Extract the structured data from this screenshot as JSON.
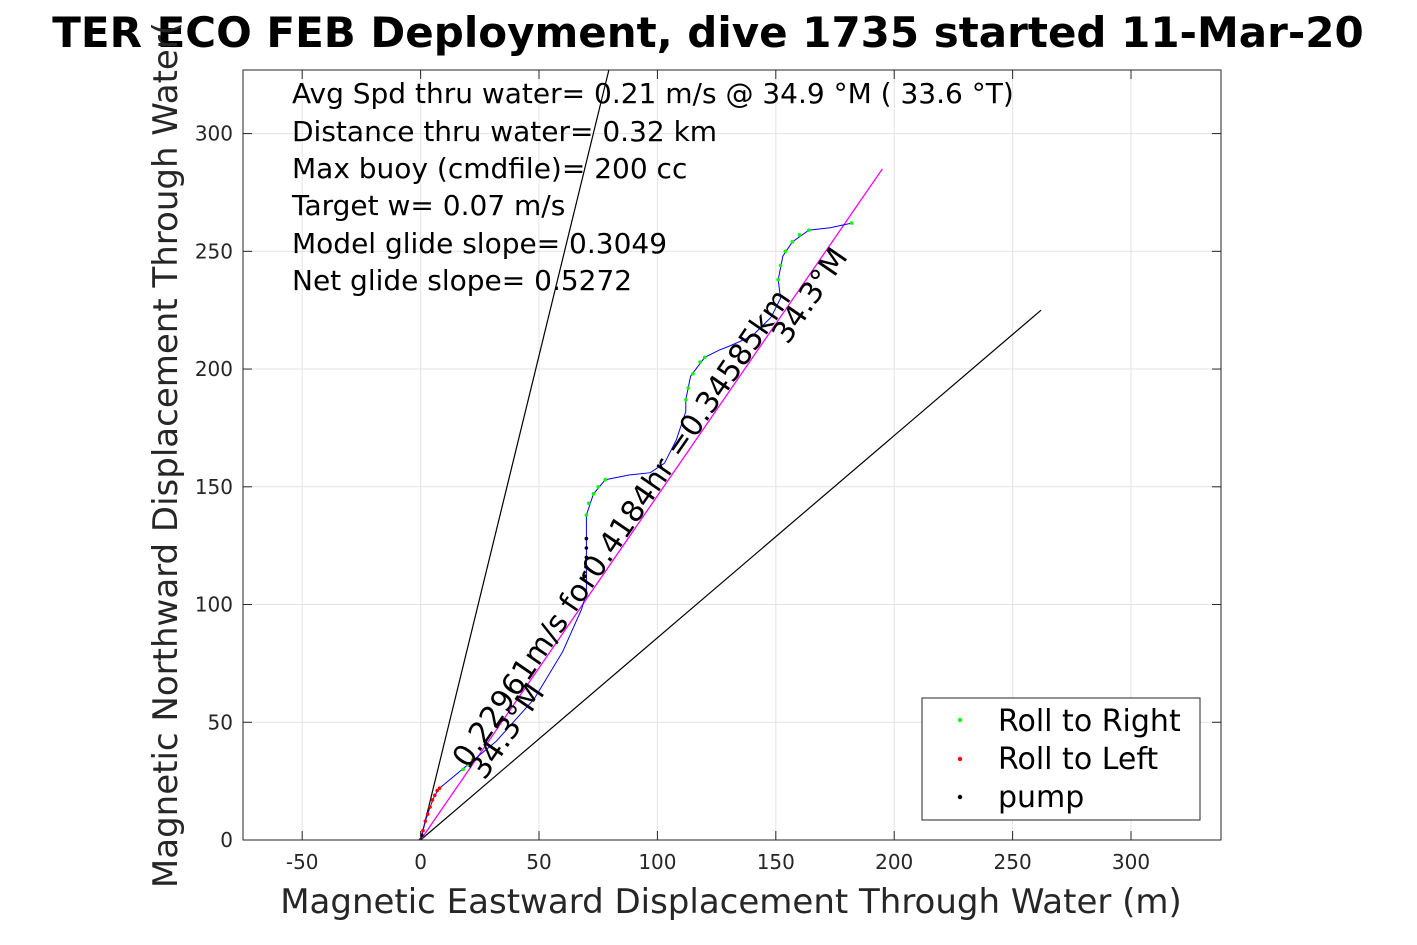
{
  "figure": {
    "title": "TER ECO FEB Deployment, dive 1735 started 11-Mar-20",
    "xlabel": "Magnetic Eastward Displacement Through Water (m)",
    "ylabel": "Magnetic Northward Displacement Through Water("
  },
  "stats": [
    "Avg Spd thru water=  0.21 m/s @  34.9 °M ( 33.6 °T)",
    "Distance thru water=  0.32 km",
    "Max buoy (cmdfile)= 200 cc",
    "Target w= 0.07 m/s",
    "Model glide slope= 0.3049",
    "Net glide slope= 0.5272"
  ],
  "annotations": [
    {
      "text": "0.22961m/s for0.4184hr =0.34585km",
      "x": 20,
      "y": 30
    },
    {
      "text": "34.3°M",
      "x": 27,
      "y": 25
    },
    {
      "text": "34.3°M",
      "x": 155,
      "y": 210
    }
  ],
  "legend": {
    "placement": "bottom-right",
    "items": [
      {
        "label": "Roll to Right",
        "color": "#00ff00"
      },
      {
        "label": "Roll to Left",
        "color": "#ff0000"
      },
      {
        "label": "pump",
        "color": "#000000"
      }
    ]
  },
  "chart_data": {
    "type": "line",
    "xlim": [
      -75,
      338
    ],
    "ylim": [
      0,
      327
    ],
    "xticks": [
      -50,
      0,
      50,
      100,
      150,
      200,
      250,
      300
    ],
    "yticks": [
      0,
      50,
      100,
      150,
      200,
      250,
      300
    ],
    "grid": true,
    "colors": {
      "track": "#0000ff",
      "roll_right": "#00ff00",
      "roll_left": "#ff0000",
      "pump": "#000000",
      "net": "#ff00ff",
      "glide_lines": "#000000"
    },
    "glide_lines": [
      {
        "x": [
          0,
          79.5
        ],
        "y": [
          0,
          327
        ]
      },
      {
        "x": [
          0,
          262
        ],
        "y": [
          0,
          225
        ]
      }
    ],
    "net_line": {
      "x": [
        0,
        195
      ],
      "y": [
        0,
        285
      ]
    },
    "track_segments": [
      [
        [
          0,
          0
        ],
        [
          2,
          8
        ],
        [
          4,
          14
        ],
        [
          6,
          19
        ],
        [
          8,
          22
        ],
        [
          20,
          32
        ],
        [
          32,
          42
        ],
        [
          48,
          60
        ],
        [
          60,
          80
        ],
        [
          68,
          98
        ],
        [
          70,
          105
        ]
      ],
      [
        [
          70,
          105
        ],
        [
          70,
          125
        ],
        [
          70,
          138
        ],
        [
          73,
          147
        ],
        [
          78,
          153
        ],
        [
          88,
          155
        ],
        [
          97,
          156
        ],
        [
          103,
          160
        ]
      ],
      [
        [
          103,
          160
        ],
        [
          108,
          170
        ],
        [
          112,
          182
        ],
        [
          112,
          187
        ],
        [
          114,
          197
        ],
        [
          120,
          205
        ],
        [
          126,
          208
        ],
        [
          131,
          210
        ],
        [
          140,
          214
        ],
        [
          148,
          222
        ]
      ],
      [
        [
          148,
          222
        ],
        [
          152,
          230
        ],
        [
          151,
          238
        ],
        [
          153,
          248
        ],
        [
          157,
          254
        ],
        [
          164,
          259
        ],
        [
          173,
          260
        ],
        [
          182,
          262
        ]
      ]
    ],
    "roll_right": [
      [
        20,
        32
      ],
      [
        22,
        34
      ],
      [
        18,
        30
      ],
      [
        70,
        138
      ],
      [
        71,
        143
      ],
      [
        73,
        147
      ],
      [
        75,
        150
      ],
      [
        78,
        153
      ],
      [
        112,
        187
      ],
      [
        113,
        192
      ],
      [
        115,
        198
      ],
      [
        118,
        203
      ],
      [
        120,
        205
      ],
      [
        151,
        238
      ],
      [
        152,
        244
      ],
      [
        154,
        250
      ],
      [
        157,
        254
      ],
      [
        160,
        257
      ],
      [
        164,
        259
      ],
      [
        182,
        262
      ]
    ],
    "roll_left": [
      [
        0,
        0
      ],
      [
        1,
        4
      ],
      [
        2,
        8
      ],
      [
        3,
        11
      ],
      [
        4,
        14
      ],
      [
        5,
        17
      ],
      [
        6,
        19
      ],
      [
        7,
        21
      ],
      [
        8,
        22
      ]
    ],
    "pump": [
      [
        0,
        0
      ],
      [
        0.5,
        2
      ],
      [
        69.5,
        112
      ],
      [
        69.8,
        116
      ],
      [
        70,
        120
      ],
      [
        70,
        124
      ],
      [
        70,
        128
      ]
    ]
  }
}
